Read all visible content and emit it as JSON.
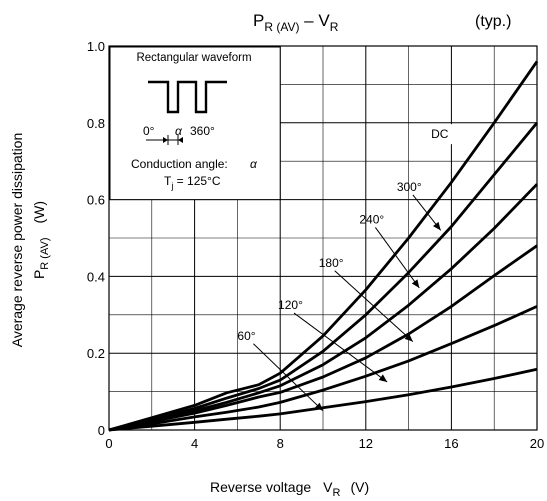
{
  "chart_data": {
    "type": "line",
    "title": {
      "main": "P",
      "main_sub": "R (AV)",
      "dash": " – ",
      "v": "V",
      "v_sub": "R",
      "note": "(typ.)"
    },
    "xlabel": {
      "main": "Reverse voltage",
      "symbol": "V",
      "symbol_sub": "R",
      "unit": "(V)"
    },
    "ylabel": {
      "line1": "Average reverse power dissipation",
      "symbol": "P",
      "symbol_sub": "R (AV)",
      "unit": "(W)"
    },
    "xlim": [
      0,
      20
    ],
    "ylim": [
      0,
      1.0
    ],
    "xticks": [
      {
        "v": 0,
        "label": "0"
      },
      {
        "v": 4,
        "label": "4"
      },
      {
        "v": 8,
        "label": "8"
      },
      {
        "v": 12,
        "label": "12"
      },
      {
        "v": 16,
        "label": "16"
      },
      {
        "v": 20,
        "label": "20"
      }
    ],
    "yticks": [
      {
        "v": 0,
        "label": "0"
      },
      {
        "v": 0.2,
        "label": "0.2"
      },
      {
        "v": 0.4,
        "label": "0.4"
      },
      {
        "v": 0.6,
        "label": "0.6"
      },
      {
        "v": 0.8,
        "label": "0.8"
      },
      {
        "v": 1.0,
        "label": "1.0"
      }
    ],
    "grid": true,
    "grid_minor_step_x": 2,
    "grid_minor_step_y": 0.1,
    "series": [
      {
        "name": "DC",
        "points": [
          [
            0,
            0
          ],
          [
            2,
            0.022
          ],
          [
            4,
            0.044
          ],
          [
            5.5,
            0.064
          ],
          [
            7,
            0.086
          ],
          [
            8,
            0.098
          ],
          [
            10,
            0.138
          ],
          [
            12,
            0.188
          ],
          [
            14,
            0.25
          ],
          [
            16,
            0.322
          ],
          [
            18,
            0.402
          ],
          [
            20,
            0.48
          ]
        ]
      },
      {
        "name": "300°",
        "points": [
          [
            0,
            0
          ],
          [
            2,
            0.025
          ],
          [
            4,
            0.05
          ],
          [
            5.5,
            0.072
          ],
          [
            7,
            0.097
          ],
          [
            8,
            0.115
          ],
          [
            10,
            0.17
          ],
          [
            12,
            0.24
          ],
          [
            14,
            0.325
          ],
          [
            16,
            0.42
          ],
          [
            18,
            0.525
          ],
          [
            20,
            0.64
          ]
        ]
      },
      {
        "name": "240°",
        "points": [
          [
            0,
            0
          ],
          [
            2,
            0.028
          ],
          [
            4,
            0.056
          ],
          [
            5.5,
            0.083
          ],
          [
            7,
            0.108
          ],
          [
            8,
            0.13
          ],
          [
            10,
            0.205
          ],
          [
            12,
            0.3
          ],
          [
            14,
            0.41
          ],
          [
            16,
            0.53
          ],
          [
            18,
            0.665
          ],
          [
            20,
            0.8
          ]
        ]
      },
      {
        "name": "180°",
        "points": [
          [
            0,
            0
          ],
          [
            2,
            0.032
          ],
          [
            4,
            0.064
          ],
          [
            5.5,
            0.097
          ],
          [
            7,
            0.118
          ],
          [
            8,
            0.148
          ],
          [
            10,
            0.245
          ],
          [
            12,
            0.365
          ],
          [
            14,
            0.5
          ],
          [
            16,
            0.645
          ],
          [
            18,
            0.8
          ],
          [
            20,
            0.96
          ]
        ]
      },
      {
        "name": "120°",
        "points": [
          [
            0,
            0
          ],
          [
            2,
            0.016
          ],
          [
            4,
            0.034
          ],
          [
            5.5,
            0.046
          ],
          [
            7,
            0.06
          ],
          [
            8,
            0.072
          ],
          [
            10,
            0.104
          ],
          [
            12,
            0.14
          ],
          [
            14,
            0.18
          ],
          [
            16,
            0.225
          ],
          [
            18,
            0.272
          ],
          [
            20,
            0.322
          ]
        ]
      },
      {
        "name": "60°",
        "points": [
          [
            0,
            0
          ],
          [
            2,
            0.01
          ],
          [
            4,
            0.02
          ],
          [
            5.5,
            0.028
          ],
          [
            7,
            0.036
          ],
          [
            8,
            0.042
          ],
          [
            10,
            0.058
          ],
          [
            12,
            0.074
          ],
          [
            14,
            0.092
          ],
          [
            16,
            0.112
          ],
          [
            18,
            0.134
          ],
          [
            20,
            0.158
          ]
        ]
      }
    ],
    "labels": [
      {
        "series": "DC",
        "text": "DC",
        "at": [
          15.05,
          0.76
        ],
        "boxed": true
      },
      {
        "series": "300°",
        "text": "300°",
        "at": [
          13.45,
          0.623
        ],
        "arrow_to": [
          15.5,
          0.52
        ]
      },
      {
        "series": "240°",
        "text": "240°",
        "at": [
          11.7,
          0.538
        ],
        "arrow_to": [
          14.5,
          0.37
        ]
      },
      {
        "series": "180°",
        "text": "180°",
        "at": [
          9.8,
          0.425
        ],
        "arrow_to": [
          14.2,
          0.23
        ]
      },
      {
        "series": "120°",
        "text": "120°",
        "at": [
          7.9,
          0.315
        ],
        "arrow_to": [
          13.0,
          0.125
        ]
      },
      {
        "series": "60°",
        "text": "60°",
        "at": [
          6.0,
          0.235
        ],
        "arrow_to": [
          10.0,
          0.05
        ]
      }
    ],
    "inset": {
      "title": "Rectangular waveform",
      "angle_start": "0°",
      "angle_symbol": "α",
      "angle_end": "360°",
      "conduction": "Conduction angle:",
      "conduction_symbol": "α",
      "tj_symbol": "T",
      "tj_sub": "j",
      "tj_value": " = 125°C"
    },
    "colors": {
      "curve": "#000000",
      "grid": "#000000",
      "background": "#ffffff"
    }
  }
}
